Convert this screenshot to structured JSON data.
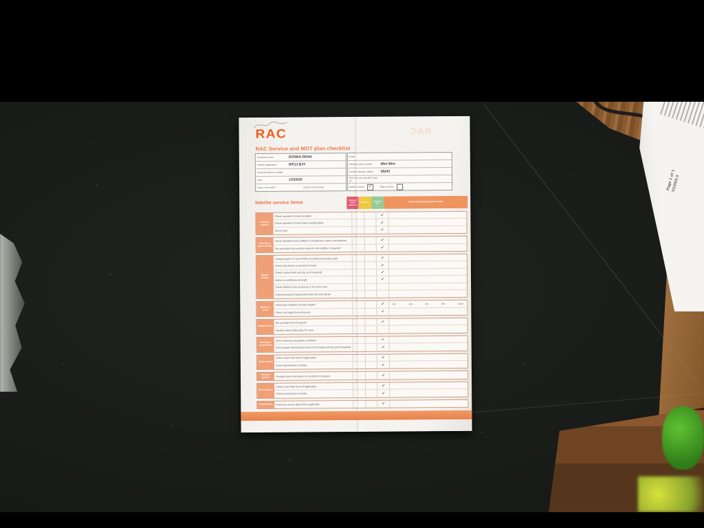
{
  "side_paper": {
    "page_label": "Page 1 of 1",
    "version_label": "V1/20/2.0"
  },
  "document": {
    "logo": "RAC",
    "brand_color": "#f4591f",
    "title": "RAC Service and MOT plan checklist",
    "info": {
      "left": [
        {
          "label": "Customer name",
          "value": "DONNA DEAN"
        },
        {
          "label": "Vehicle registration",
          "value": "WF13 BJY"
        },
        {
          "label": "Customer phone number",
          "value": ""
        },
        {
          "label": "Date",
          "value": "13/10/20"
        },
        {
          "label": "Date of next MOT",
          "value": "",
          "label2": "Date of next service",
          "value2": ""
        }
      ],
      "right": [
        {
          "label": "Email",
          "value": ""
        },
        {
          "label": "Vehicle make & model",
          "value": "Mini Mini"
        },
        {
          "label": "Current mileage (miles)",
          "value": "58241"
        },
        {
          "label": "RAC Service and MOT plan no.",
          "value": ""
        },
        {
          "options": [
            {
              "label": "Interim service",
              "checked": true
            },
            {
              "label": "Major service",
              "checked": false
            }
          ]
        }
      ]
    },
    "checklist": {
      "heading": "Interim service items",
      "check_glyph": "✓",
      "columns": [
        {
          "label": "Requires urgent attention",
          "color": "#e45a70"
        },
        {
          "label": "Advisory",
          "color": "#efc93f"
        },
        {
          "label": "Checked OK",
          "color": "#96ca97"
        },
        {
          "label": "Notes (including advisory notes)",
          "color": "#f0945f"
        }
      ],
      "sections": [
        {
          "label": "Internal checks",
          "items": [
            {
              "text": "Check operation of external lights",
              "ok": true
            },
            {
              "text": "Check operation of instrument warning lights",
              "ok": true
            },
            {
              "text": "Check horn",
              "ok": true
            }
          ]
        },
        {
          "label": "External & glass checks",
          "items": [
            {
              "text": "Check operation and condition of windscreen wipers and washers",
              "ok": true
            },
            {
              "text": "Top up windscreen washer reservoir with additive if required",
              "ok": true
            }
          ]
        },
        {
          "label": "Engine checks",
          "items": [
            {
              "text": "Change engine oil and oil filter (including sump plug seal)",
              "ok": true
            },
            {
              "text": "Check and advise on general oil leaks",
              "ok": true
            },
            {
              "text": "Check coolant level and top up (if required)",
              "ok": true
            },
            {
              "text": "Advise on antifreeze strength",
              "ok": true
            },
            {
              "text": "Check AdBlue & top up (top up is an extra cost)",
              "ok": false
            },
            {
              "text": "Check timing belt replacement intervals and advise",
              "ok": false
            }
          ]
        },
        {
          "label": "Wheels & tyres",
          "items": [
            {
              "text": "Check tyre condition and tyre depths",
              "ok": true,
              "notes_tokens": [
                "O/F",
                "O/R",
                "N/F",
                "N/R",
                "Spare"
              ]
            },
            {
              "text": "Check and adjust tyre pressures",
              "ok": true
            }
          ]
        },
        {
          "label": "Brake checks",
          "items": [
            {
              "text": "Top up brake fluid if required",
              "ok": true
            },
            {
              "text": "Visually check brake pads for wear",
              "ok": false
            }
          ]
        },
        {
          "label": "Steering & suspension",
          "items": [
            {
              "text": "Check steering rack gaiters condition",
              "ok": true
            },
            {
              "text": "Check power steering fluid reservoir for leaks and top up (if required)",
              "ok": true
            }
          ]
        },
        {
          "label": "Drive system",
          "items": [
            {
              "text": "Check clutch fluid level (if applicable)",
              "ok": true
            },
            {
              "text": "Check transmission oil leaks",
              "ok": true
            }
          ]
        },
        {
          "label": "Exhaust system",
          "items": [
            {
              "text": "Visually check and advise on condition of exhaust",
              "ok": true
            }
          ]
        },
        {
          "label": "Drive system",
          "items": [
            {
              "text": "Check clutch fluid level (if applicable)",
              "ok": true
            },
            {
              "text": "Check transmission oil leaks",
              "ok": true
            }
          ]
        },
        {
          "label": "Final checks",
          "items": [
            {
              "text": "Reset car service light where applicable",
              "ok": true
            }
          ]
        }
      ]
    }
  }
}
